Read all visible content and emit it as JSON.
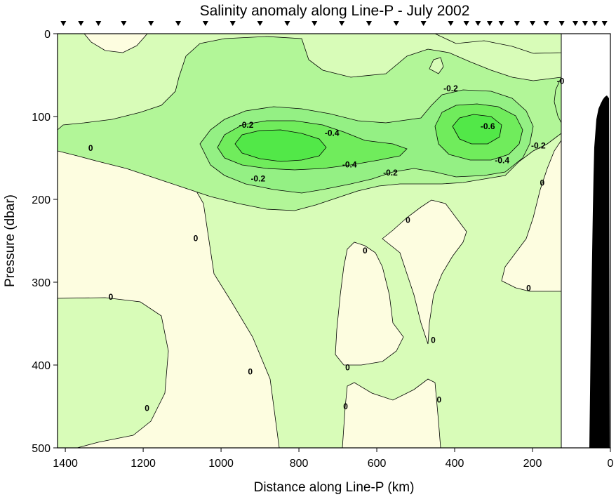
{
  "chart_data": {
    "type": "contour",
    "title": "Salinity anomaly along Line-P - July 2002",
    "xlabel": "Distance along Line-P (km)",
    "ylabel": "Pressure (dbar)",
    "xlim": [
      1420,
      0
    ],
    "ylim": [
      0,
      500
    ],
    "x_reversed": true,
    "y_reversed": true,
    "x_ticks": [
      1400,
      1200,
      1000,
      800,
      600,
      400,
      200,
      0
    ],
    "y_ticks": [
      0,
      100,
      200,
      300,
      400,
      500
    ],
    "station_markers_km": [
      1405,
      1360,
      1315,
      1250,
      1180,
      1110,
      1040,
      970,
      900,
      830,
      760,
      690,
      620,
      550,
      480,
      410,
      370,
      340,
      310,
      280,
      240,
      200,
      165,
      125,
      90,
      65,
      40,
      15
    ],
    "data_extent_km": [
      1420,
      125
    ],
    "levels": [
      0,
      -0.1,
      -0.2,
      -0.3,
      -0.4,
      -0.5,
      -0.6
    ],
    "fill_colors": {
      "positive": "#fdfde0",
      "0": "#d8fcb8",
      "-0.1": "#b2f698",
      "-0.2": "#94f084",
      "-0.4": "#70ec5c",
      "-0.6": "#52e848"
    },
    "contour_labels": [
      {
        "text": "-0.2",
        "x": 935,
        "y": 110
      },
      {
        "text": "-0.4",
        "x": 715,
        "y": 120
      },
      {
        "text": "-0.4",
        "x": 670,
        "y": 158
      },
      {
        "text": "-0.2",
        "x": 905,
        "y": 175
      },
      {
        "text": "-0.2",
        "x": 565,
        "y": 168
      },
      {
        "text": "-0.2",
        "x": 410,
        "y": 66
      },
      {
        "text": "-0.6",
        "x": 315,
        "y": 112
      },
      {
        "text": "-0.4",
        "x": 278,
        "y": 153
      },
      {
        "text": "-0.2",
        "x": 185,
        "y": 135
      },
      {
        "text": "-0",
        "x": 128,
        "y": 57
      },
      {
        "text": "0",
        "x": 1335,
        "y": 138
      },
      {
        "text": "0",
        "x": 1065,
        "y": 247
      },
      {
        "text": "0",
        "x": 1283,
        "y": 318
      },
      {
        "text": "0",
        "x": 520,
        "y": 225
      },
      {
        "text": "0",
        "x": 630,
        "y": 262
      },
      {
        "text": "0",
        "x": 175,
        "y": 180
      },
      {
        "text": "0",
        "x": 210,
        "y": 307
      },
      {
        "text": "0",
        "x": 455,
        "y": 370
      },
      {
        "text": "0",
        "x": 925,
        "y": 408
      },
      {
        "text": "0",
        "x": 675,
        "y": 403
      },
      {
        "text": "0",
        "x": 1190,
        "y": 452
      },
      {
        "text": "0",
        "x": 680,
        "y": 450
      },
      {
        "text": "0",
        "x": 440,
        "y": 442
      }
    ],
    "bathymetry_color": "#000000"
  }
}
